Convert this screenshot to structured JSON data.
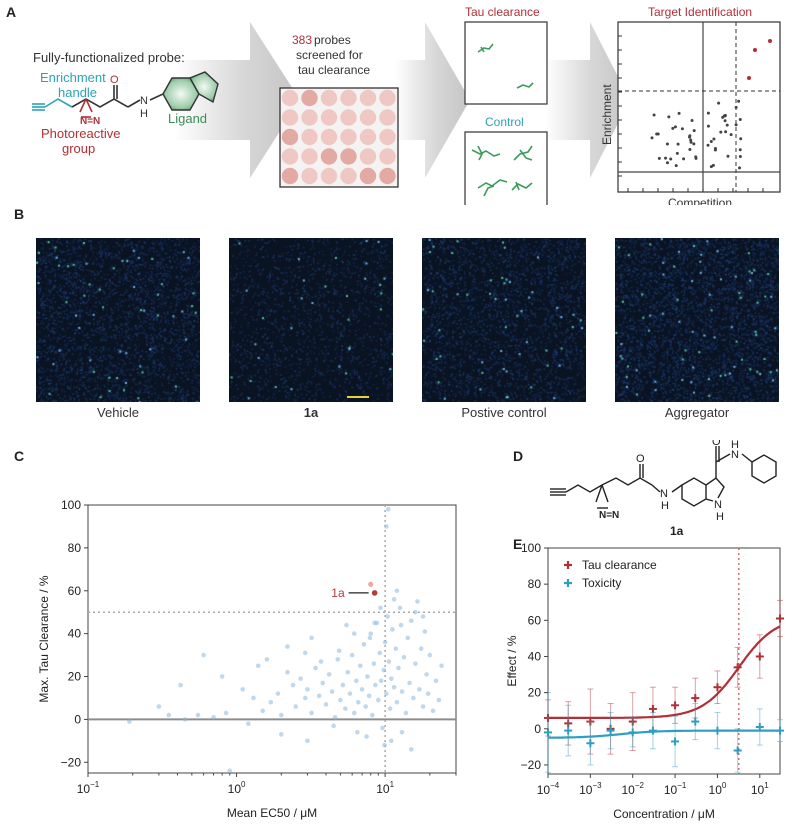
{
  "panels": {
    "a": "A",
    "b": "B",
    "c": "C",
    "d": "D",
    "e": "E"
  },
  "panel_a": {
    "probe_title": "Fully-functionalized probe:",
    "enrichment_handle_line1": "Enrichment",
    "enrichment_handle_line2": "handle",
    "photoreactive_line1": "Photoreactive",
    "photoreactive_line2": "group",
    "ligand": "Ligand",
    "atom_n": "N",
    "atom_h": "H",
    "atom_o": "O",
    "diazirine": "N=N",
    "probes_count": "383",
    "probes_text1": " probes",
    "probes_text2": "screened for",
    "probes_text3": "tau clearance",
    "tau_clearance": "Tau clearance",
    "control": "Control",
    "target_identification": "Target Identification",
    "enrichment_axis": "Enrichment",
    "competition_axis": "Competition"
  },
  "panel_b": {
    "labels": [
      "Vehicle",
      "1a",
      "Postive control",
      "Aggregator"
    ]
  },
  "panel_d": {
    "compound_label": "1a",
    "atom_o": "O",
    "atom_nh_top": "N",
    "atom_h_top": "H",
    "atom_nh_amide": "N",
    "atom_h_amide": "H",
    "atom_n_indole": "N",
    "atom_h_indole": "H",
    "diazirine": "N=N"
  },
  "chart_data": [
    {
      "id": "C",
      "type": "scatter",
      "xscale": "log",
      "xlim": [
        0.1,
        30
      ],
      "ylim": [
        -25,
        100
      ],
      "xticks": [
        0.1,
        1,
        10
      ],
      "xtick_labels": [
        "10^-1",
        "10^0",
        "10^1"
      ],
      "yticks": [
        -20,
        0,
        20,
        40,
        60,
        80,
        100
      ],
      "ytick_labels": [
        "−20",
        "0",
        "20",
        "40",
        "60",
        "80",
        "100"
      ],
      "xlabel": "Mean EC50 / μM",
      "ylabel": "Max. Tau Clearance / %",
      "threshold_y": 50,
      "threshold_x": 10,
      "highlight": {
        "label": "1a",
        "x": 8.5,
        "y": 59
      },
      "highlight_ghost": {
        "x": 8.0,
        "y": 63
      },
      "point_color": "#8ab8dc",
      "highlight_color": "#b23a3a",
      "points": [
        [
          0.19,
          -1
        ],
        [
          0.3,
          6
        ],
        [
          0.35,
          2
        ],
        [
          0.42,
          16
        ],
        [
          0.45,
          0
        ],
        [
          0.55,
          2
        ],
        [
          0.6,
          30
        ],
        [
          0.7,
          1
        ],
        [
          0.85,
          3
        ],
        [
          1.1,
          14
        ],
        [
          1.3,
          10
        ],
        [
          1.4,
          25
        ],
        [
          1.5,
          4
        ],
        [
          1.7,
          8
        ],
        [
          1.9,
          12
        ],
        [
          2.0,
          2
        ],
        [
          2.2,
          22
        ],
        [
          2.4,
          16
        ],
        [
          2.5,
          6
        ],
        [
          2.7,
          19
        ],
        [
          2.9,
          10
        ],
        [
          3.0,
          14
        ],
        [
          3.2,
          3
        ],
        [
          3.4,
          24
        ],
        [
          3.6,
          11
        ],
        [
          3.8,
          17
        ],
        [
          4.0,
          7
        ],
        [
          4.2,
          21
        ],
        [
          4.4,
          13
        ],
        [
          4.6,
          1
        ],
        [
          4.8,
          28
        ],
        [
          5.0,
          9
        ],
        [
          5.2,
          16
        ],
        [
          5.4,
          5
        ],
        [
          5.6,
          22
        ],
        [
          5.8,
          12
        ],
        [
          6.0,
          30
        ],
        [
          6.2,
          3
        ],
        [
          6.4,
          18
        ],
        [
          6.6,
          8
        ],
        [
          6.8,
          25
        ],
        [
          7.0,
          14
        ],
        [
          7.2,
          35
        ],
        [
          7.4,
          6
        ],
        [
          7.6,
          20
        ],
        [
          7.8,
          11
        ],
        [
          8.0,
          40
        ],
        [
          8.2,
          2
        ],
        [
          8.4,
          26
        ],
        [
          8.6,
          16
        ],
        [
          8.8,
          45
        ],
        [
          9.0,
          9
        ],
        [
          9.2,
          31
        ],
        [
          9.4,
          18
        ],
        [
          9.6,
          -4
        ],
        [
          9.8,
          23
        ],
        [
          10.0,
          36
        ],
        [
          10.2,
          12
        ],
        [
          10.4,
          48
        ],
        [
          10.6,
          27
        ],
        [
          10.8,
          5
        ],
        [
          11.0,
          19
        ],
        [
          11.2,
          42
        ],
        [
          11.5,
          15
        ],
        [
          11.8,
          33
        ],
        [
          12.0,
          8
        ],
        [
          12.3,
          24
        ],
        [
          12.6,
          52
        ],
        [
          13.0,
          13
        ],
        [
          13.4,
          29
        ],
        [
          13.8,
          3
        ],
        [
          14.2,
          38
        ],
        [
          14.6,
          17
        ],
        [
          15.0,
          46
        ],
        [
          15.5,
          10
        ],
        [
          16.0,
          26
        ],
        [
          16.5,
          55
        ],
        [
          17.0,
          14
        ],
        [
          17.5,
          33
        ],
        [
          18.0,
          6
        ],
        [
          18.5,
          41
        ],
        [
          19.0,
          21
        ],
        [
          19.5,
          12
        ],
        [
          20.0,
          30
        ],
        [
          21.0,
          4
        ],
        [
          22.0,
          18
        ],
        [
          23.0,
          9
        ],
        [
          24.0,
          25
        ],
        [
          6.5,
          -6
        ],
        [
          7.5,
          -8
        ],
        [
          9.9,
          -12
        ],
        [
          11.0,
          -10
        ],
        [
          13.0,
          -6
        ],
        [
          15.0,
          -14
        ],
        [
          2.0,
          -7
        ],
        [
          4.5,
          -3
        ],
        [
          1.2,
          -2
        ],
        [
          3.0,
          -10
        ],
        [
          10.5,
          98
        ],
        [
          10.2,
          90
        ],
        [
          8.5,
          45
        ],
        [
          12.0,
          60
        ],
        [
          11.5,
          56
        ],
        [
          5.5,
          44
        ],
        [
          3.2,
          38
        ],
        [
          2.2,
          34
        ],
        [
          6.2,
          40
        ],
        [
          1.6,
          28
        ],
        [
          0.8,
          20
        ],
        [
          0.9,
          -24
        ],
        [
          16.0,
          50
        ],
        [
          18.0,
          48
        ],
        [
          12.8,
          44
        ],
        [
          9.3,
          52
        ],
        [
          7.9,
          38
        ],
        [
          4.9,
          32
        ],
        [
          3.7,
          27
        ],
        [
          2.9,
          31
        ]
      ]
    },
    {
      "id": "E",
      "type": "scatter_with_fit",
      "xscale": "log",
      "xlim": [
        0.0001,
        30
      ],
      "ylim": [
        -25,
        100
      ],
      "xticks": [
        0.0001,
        0.001,
        0.01,
        0.1,
        1,
        10
      ],
      "xtick_labels": [
        "10^-4",
        "10^-3",
        "10^-2",
        "10^-1",
        "10^0",
        "10^1"
      ],
      "yticks": [
        -20,
        0,
        20,
        40,
        60,
        80,
        100
      ],
      "ytick_labels": [
        "−20",
        "0",
        "20",
        "40",
        "60",
        "80",
        "100"
      ],
      "xlabel": "Concentration / μM",
      "ylabel": "Effect / %",
      "ec50_line_x": 3.2,
      "legend": "top-left",
      "series": [
        {
          "name": "Tau clearance",
          "color": "#b22f36",
          "fit": {
            "bottom": 6,
            "top": 62,
            "ec50": 3.2,
            "hill": 1
          },
          "points": [
            {
              "x": 0.0001,
              "y": 6,
              "err": 10
            },
            {
              "x": 0.0003,
              "y": 3,
              "err": 12
            },
            {
              "x": 0.001,
              "y": 4,
              "err": 18
            },
            {
              "x": 0.003,
              "y": 0,
              "err": 14
            },
            {
              "x": 0.01,
              "y": 4,
              "err": 16
            },
            {
              "x": 0.03,
              "y": 11,
              "err": 12
            },
            {
              "x": 0.1,
              "y": 13,
              "err": 10
            },
            {
              "x": 0.3,
              "y": 17,
              "err": 11
            },
            {
              "x": 1,
              "y": 23,
              "err": 9
            },
            {
              "x": 3,
              "y": 34,
              "err": 11
            },
            {
              "x": 10,
              "y": 40,
              "err": 12
            },
            {
              "x": 30,
              "y": 61,
              "err": 10
            }
          ]
        },
        {
          "name": "Toxicity",
          "color": "#2e9fc0",
          "fit": {
            "bottom": -5,
            "top": -1,
            "ec50": 0.005,
            "hill": 1
          },
          "points": [
            {
              "x": 0.0001,
              "y": -2,
              "err": 22
            },
            {
              "x": 0.0003,
              "y": -1,
              "err": 14
            },
            {
              "x": 0.001,
              "y": -8,
              "err": 12
            },
            {
              "x": 0.003,
              "y": -1,
              "err": 10
            },
            {
              "x": 0.01,
              "y": -2,
              "err": 8
            },
            {
              "x": 0.03,
              "y": -1,
              "err": 10
            },
            {
              "x": 0.1,
              "y": -7,
              "err": 14
            },
            {
              "x": 0.3,
              "y": 4,
              "err": 10
            },
            {
              "x": 1,
              "y": -1,
              "err": 10
            },
            {
              "x": 3,
              "y": -12,
              "err": 12
            },
            {
              "x": 10,
              "y": 1,
              "err": 10
            },
            {
              "x": 30,
              "y": -1,
              "err": 6
            }
          ]
        }
      ]
    }
  ]
}
